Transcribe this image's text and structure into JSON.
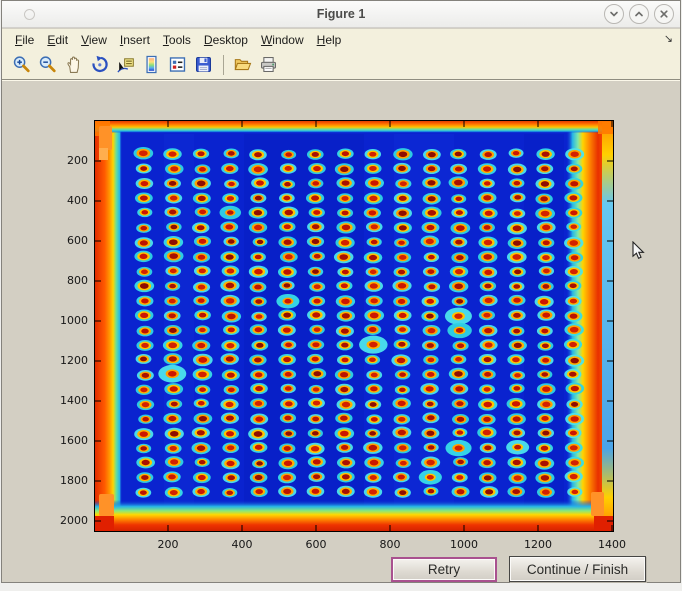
{
  "window": {
    "title": "Figure 1",
    "controls": [
      {
        "name": "shade-window",
        "glyph": "chevron-down"
      },
      {
        "name": "unshade-window",
        "glyph": "chevron-up"
      },
      {
        "name": "close-window",
        "glyph": "close"
      }
    ]
  },
  "menu_bar": {
    "items": [
      "File",
      "Edit",
      "View",
      "Insert",
      "Tools",
      "Desktop",
      "Window",
      "Help"
    ],
    "overflow_arrow": "↘"
  },
  "toolbar": {
    "buttons": [
      {
        "name": "zoom-in"
      },
      {
        "name": "zoom-out"
      },
      {
        "name": "pan"
      },
      {
        "name": "rotate-3d"
      },
      {
        "name": "data-cursor"
      },
      {
        "name": "colorbar"
      },
      {
        "name": "legend"
      },
      {
        "name": "save"
      },
      {
        "name": "separator"
      },
      {
        "name": "open"
      },
      {
        "name": "print"
      }
    ]
  },
  "actions": {
    "retry_label": "Retry",
    "continue_label": "Continue / Finish"
  },
  "chart_data": {
    "type": "heatmap",
    "title": "",
    "xlabel": "",
    "ylabel": "",
    "x_ticks": [
      200,
      400,
      600,
      800,
      1000,
      1200,
      1400
    ],
    "y_ticks": [
      200,
      400,
      600,
      800,
      1000,
      1200,
      1400,
      1600,
      1800,
      2000
    ],
    "x_range": [
      1,
      1405
    ],
    "y_range": [
      1,
      2055
    ],
    "grid": false,
    "colormap": "jet",
    "image_description": "Jet-colormap intensity image of a 384-well microplate scan: 24 rows by 16 columns of bright spots (hot red cores with yellow rings and cyan halos) on a deep blue background; the plate edges saturate hot orange/red on all four sides, hottest along the bottom and left borders",
    "spot_grid": {
      "rows": 24,
      "cols": 16,
      "first_center_x_data": 140,
      "col_step_data": 77,
      "first_center_y_data": 170,
      "row_step_data": 73
    },
    "colors": {
      "background_blue": "#0a23cf",
      "spot_core_red": "#c41500",
      "spot_ring_yellow": "#ffb000",
      "spot_halo_cyan": "#38dce8",
      "edge_hot_orange": "#ff7000",
      "edge_hot_red": "#e02800"
    }
  }
}
